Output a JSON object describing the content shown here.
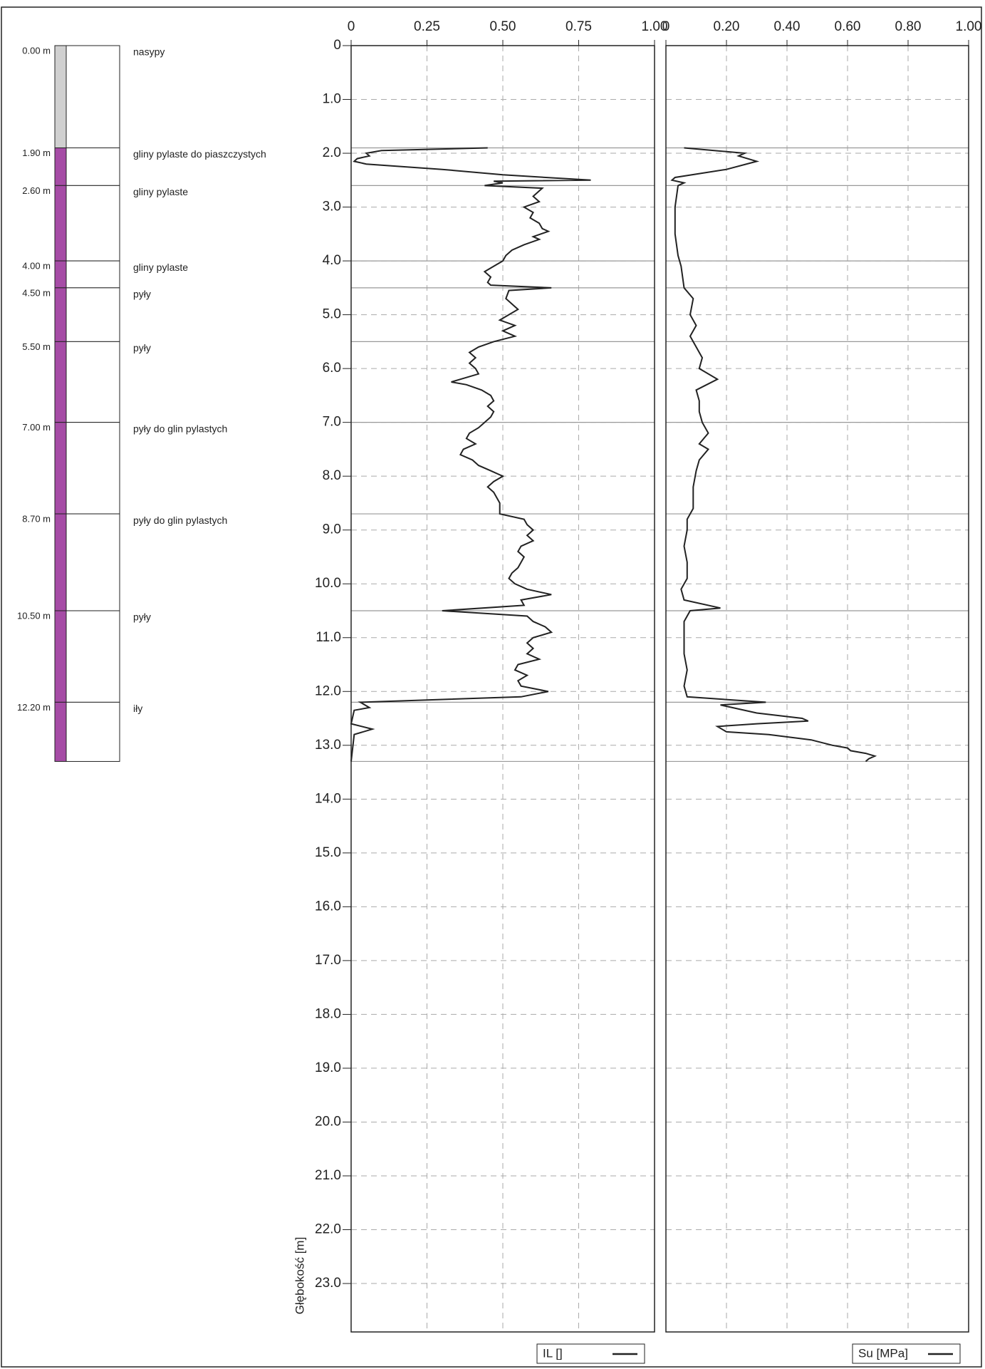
{
  "soil_column": {
    "bottom": 13.3,
    "layers": [
      {
        "top": {
          "value": 0,
          "label": "0.00 m"
        },
        "name": "nasypy",
        "color": "#d0d0d0"
      },
      {
        "top": {
          "value": 1.9,
          "label": "1.90 m"
        },
        "name": "gliny pylaste do piaszczystych",
        "color": "#a64ca6"
      },
      {
        "top": {
          "value": 2.6,
          "label": "2.60 m"
        },
        "name": "gliny pylaste",
        "color": "#a64ca6"
      },
      {
        "top": {
          "value": 4.0,
          "label": "4.00 m"
        },
        "name": "gliny pylaste",
        "color": "#a64ca6"
      },
      {
        "top": {
          "value": 4.5,
          "label": "4.50 m"
        },
        "name": "pyły",
        "color": "#a64ca6"
      },
      {
        "top": {
          "value": 5.5,
          "label": "5.50 m"
        },
        "name": "pyły",
        "color": "#a64ca6"
      },
      {
        "top": {
          "value": 7.0,
          "label": "7.00 m"
        },
        "name": "pyły do glin pylastych",
        "color": "#a64ca6"
      },
      {
        "top": {
          "value": 8.7,
          "label": "8.70 m"
        },
        "name": "pyły do glin pylastych",
        "color": "#a64ca6"
      },
      {
        "top": {
          "value": 10.5,
          "label": "10.50 m"
        },
        "name": "pyły",
        "color": "#a64ca6"
      },
      {
        "top": {
          "value": 12.2,
          "label": "12.20 m"
        },
        "name": "iły",
        "color": "#a64ca6"
      }
    ]
  },
  "chart_data": [
    {
      "type": "line",
      "y_label": "Głębokość [m]",
      "grid": true,
      "xlim": [
        0,
        1
      ],
      "xticks": [
        0,
        0.25,
        {
          "value": 0.5,
          "label": "0.50"
        },
        0.75,
        {
          "value": 1,
          "label": "1.00"
        }
      ],
      "ylim": [
        0,
        23.9
      ],
      "yticks": [
        0,
        {
          "value": 1,
          "label": "1.0"
        },
        {
          "value": 2,
          "label": "2.0"
        },
        {
          "value": 3,
          "label": "3.0"
        },
        {
          "value": 4,
          "label": "4.0"
        },
        {
          "value": 5,
          "label": "5.0"
        },
        {
          "value": 6,
          "label": "6.0"
        },
        {
          "value": 7,
          "label": "7.0"
        },
        {
          "value": 8,
          "label": "8.0"
        },
        {
          "value": 9,
          "label": "9.0"
        },
        {
          "value": 10,
          "label": "10.0"
        },
        {
          "value": 11,
          "label": "11.0"
        },
        {
          "value": 12,
          "label": "12.0"
        },
        {
          "value": 13,
          "label": "13.0"
        },
        {
          "value": 14,
          "label": "14.0"
        },
        {
          "value": 15,
          "label": "15.0"
        },
        {
          "value": 16,
          "label": "16.0"
        },
        {
          "value": 17,
          "label": "17.0"
        },
        {
          "value": 18,
          "label": "18.0"
        },
        {
          "value": 19,
          "label": "19.0"
        },
        {
          "value": 20,
          "label": "20.0"
        },
        {
          "value": 21,
          "label": "21.0"
        },
        {
          "value": 22,
          "label": "22.0"
        },
        {
          "value": 23,
          "label": "23.0"
        }
      ],
      "y": [
        1.9,
        1.95,
        2.0,
        2.05,
        2.1,
        2.15,
        2.2,
        2.3,
        2.4,
        2.5,
        2.52,
        2.55,
        2.6,
        2.65,
        2.7,
        2.8,
        2.9,
        3.0,
        3.1,
        3.2,
        3.3,
        3.4,
        3.45,
        3.55,
        3.6,
        3.7,
        3.8,
        3.9,
        4.0,
        4.1,
        4.2,
        4.3,
        4.4,
        4.45,
        4.5,
        4.55,
        4.7,
        4.9,
        5.0,
        5.1,
        5.2,
        5.3,
        5.4,
        5.5,
        5.6,
        5.7,
        5.8,
        5.9,
        6.0,
        6.1,
        6.2,
        6.25,
        6.3,
        6.4,
        6.5,
        6.6,
        6.7,
        6.8,
        6.9,
        7.0,
        7.1,
        7.2,
        7.3,
        7.4,
        7.5,
        7.6,
        7.7,
        7.8,
        7.9,
        8.0,
        8.1,
        8.2,
        8.3,
        8.5,
        8.7,
        8.8,
        8.9,
        9.0,
        9.1,
        9.2,
        9.3,
        9.4,
        9.5,
        9.6,
        9.7,
        9.8,
        9.9,
        10.0,
        10.1,
        10.2,
        10.3,
        10.4,
        10.5,
        10.6,
        10.7,
        10.8,
        10.9,
        11.0,
        11.1,
        11.2,
        11.3,
        11.4,
        11.5,
        11.6,
        11.7,
        11.8,
        11.9,
        12.0,
        12.1,
        12.2,
        12.3,
        12.35,
        12.6,
        12.7,
        12.8,
        13.3
      ],
      "series": [
        {
          "name": "IL []",
          "color": "#222222",
          "values": [
            0.45,
            0.1,
            0.05,
            0.06,
            0.02,
            0.01,
            0.05,
            0.3,
            0.5,
            0.79,
            0.47,
            0.5,
            0.44,
            0.63,
            0.62,
            0.6,
            0.62,
            0.57,
            0.6,
            0.59,
            0.62,
            0.63,
            0.65,
            0.6,
            0.62,
            0.57,
            0.53,
            0.51,
            0.5,
            0.47,
            0.44,
            0.46,
            0.45,
            0.46,
            0.66,
            0.52,
            0.51,
            0.55,
            0.52,
            0.49,
            0.54,
            0.5,
            0.54,
            0.47,
            0.42,
            0.39,
            0.41,
            0.39,
            0.41,
            0.42,
            0.36,
            0.33,
            0.38,
            0.43,
            0.46,
            0.47,
            0.45,
            0.47,
            0.46,
            0.44,
            0.42,
            0.39,
            0.38,
            0.41,
            0.37,
            0.36,
            0.4,
            0.42,
            0.46,
            0.5,
            0.47,
            0.45,
            0.47,
            0.49,
            0.49,
            0.57,
            0.58,
            0.6,
            0.58,
            0.6,
            0.56,
            0.55,
            0.57,
            0.56,
            0.55,
            0.53,
            0.52,
            0.54,
            0.58,
            0.66,
            0.56,
            0.57,
            0.3,
            0.58,
            0.6,
            0.64,
            0.66,
            0.6,
            0.58,
            0.6,
            0.58,
            0.62,
            0.55,
            0.54,
            0.58,
            0.55,
            0.56,
            0.65,
            0.56,
            0.03,
            0.06,
            0.01,
            0.0,
            0.07,
            0.01,
            0.0
          ]
        }
      ]
    },
    {
      "type": "line",
      "grid": true,
      "xlim": [
        0,
        1
      ],
      "xticks": [
        0,
        {
          "value": 0.2,
          "label": "0.20"
        },
        {
          "value": 0.4,
          "label": "0.40"
        },
        {
          "value": 0.6,
          "label": "0.60"
        },
        {
          "value": 0.8,
          "label": "0.80"
        },
        {
          "value": 1,
          "label": "1.00"
        }
      ],
      "ylim": [
        0,
        23.9
      ],
      "yticks": [
        0,
        1,
        2,
        3,
        4,
        5,
        6,
        7,
        8,
        9,
        10,
        11,
        12,
        13,
        14,
        15,
        16,
        17,
        18,
        19,
        20,
        21,
        22,
        23
      ],
      "y": [
        1.9,
        2.0,
        2.05,
        2.15,
        2.3,
        2.45,
        2.5,
        2.55,
        2.6,
        3.0,
        3.5,
        3.9,
        4.1,
        4.5,
        4.7,
        5.0,
        5.2,
        5.4,
        5.6,
        5.8,
        6.0,
        6.2,
        6.4,
        6.6,
        6.8,
        7.0,
        7.2,
        7.4,
        7.5,
        7.7,
        7.9,
        8.2,
        8.6,
        8.8,
        9.0,
        9.3,
        9.6,
        9.9,
        10.1,
        10.3,
        10.45,
        10.5,
        10.7,
        11.0,
        11.3,
        11.6,
        11.9,
        12.1,
        12.2,
        12.25,
        12.4,
        12.5,
        12.55,
        12.6,
        12.65,
        12.75,
        12.8,
        12.9,
        13.0,
        13.05,
        13.1,
        13.15,
        13.2,
        13.25,
        13.3
      ],
      "series": [
        {
          "name": "Su [MPa]",
          "color": "#222222",
          "values": [
            0.06,
            0.26,
            0.24,
            0.3,
            0.2,
            0.03,
            0.02,
            0.06,
            0.04,
            0.03,
            0.03,
            0.04,
            0.05,
            0.06,
            0.09,
            0.08,
            0.1,
            0.08,
            0.1,
            0.12,
            0.11,
            0.17,
            0.1,
            0.11,
            0.11,
            0.12,
            0.14,
            0.11,
            0.14,
            0.11,
            0.1,
            0.09,
            0.09,
            0.07,
            0.07,
            0.06,
            0.07,
            0.07,
            0.05,
            0.06,
            0.18,
            0.08,
            0.06,
            0.06,
            0.06,
            0.07,
            0.06,
            0.07,
            0.33,
            0.18,
            0.3,
            0.45,
            0.47,
            0.3,
            0.17,
            0.2,
            0.34,
            0.48,
            0.55,
            0.6,
            0.61,
            0.66,
            0.69,
            0.67,
            0.66
          ]
        }
      ]
    }
  ]
}
